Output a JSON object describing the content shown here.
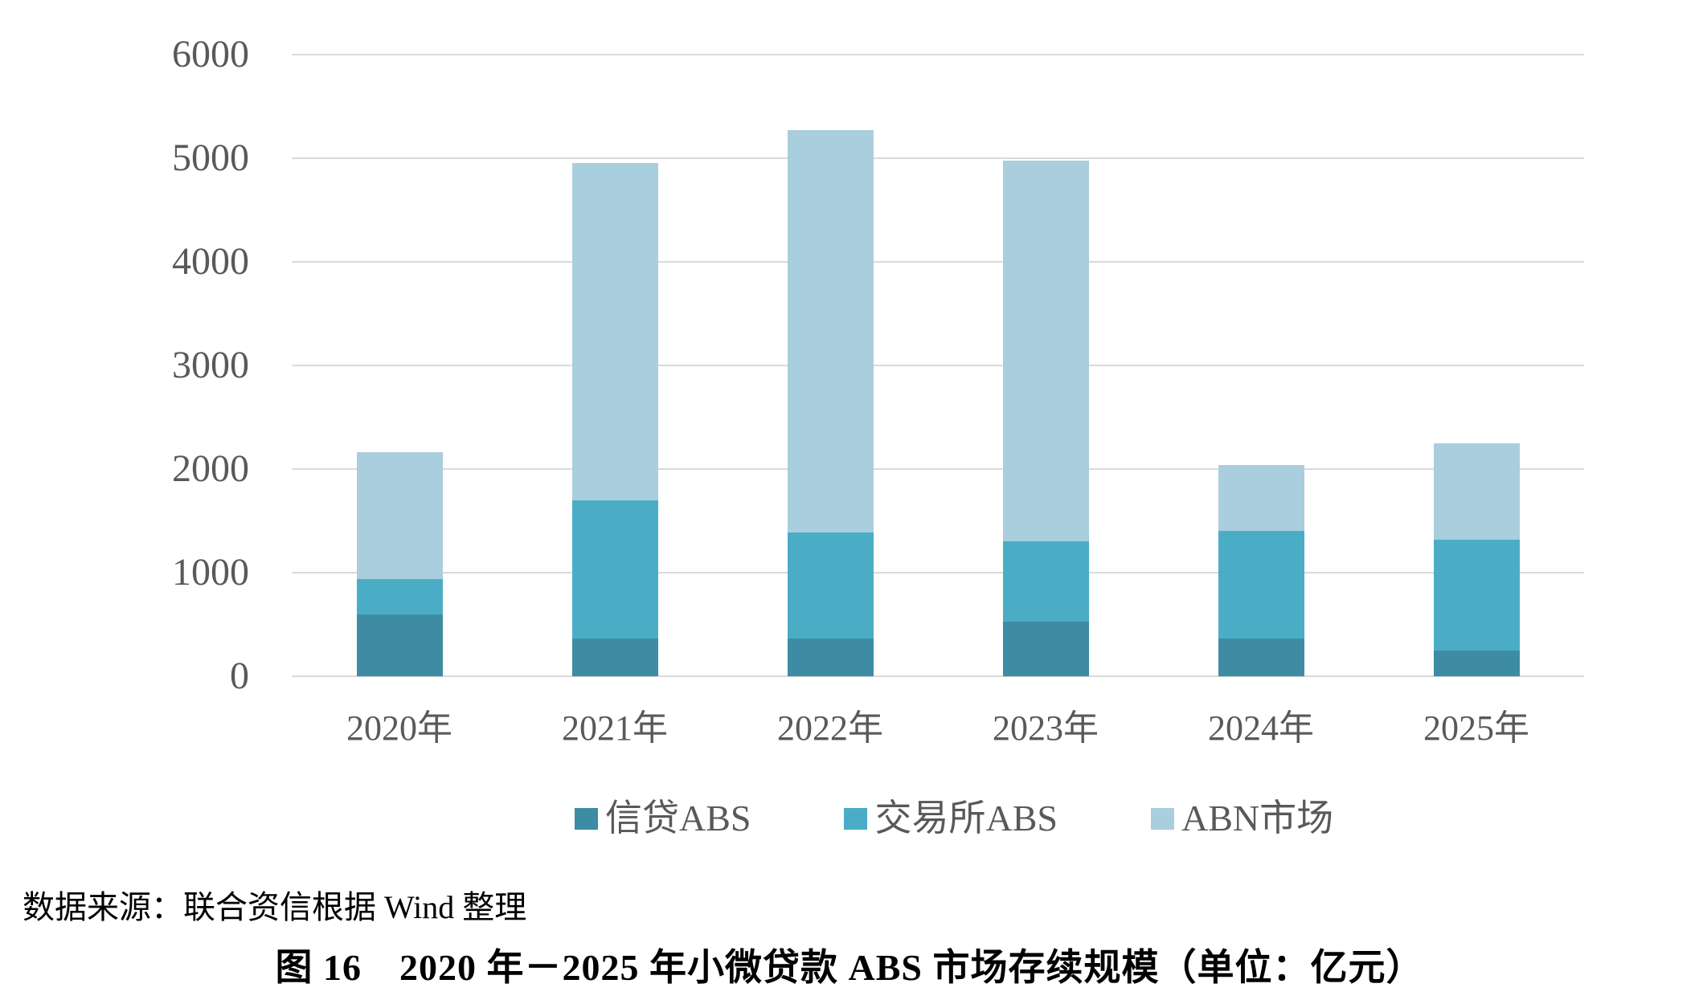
{
  "chart_data": {
    "type": "bar",
    "stacked": true,
    "title": "",
    "xlabel": "",
    "ylabel": "",
    "unit": "亿元",
    "categories": [
      "2020年",
      "2021年",
      "2022年",
      "2023年",
      "2024年",
      "2025年"
    ],
    "series": [
      {
        "name": "信贷ABS",
        "color": "#3e8ca3",
        "values": [
          600,
          365,
          365,
          525,
          365,
          250
        ]
      },
      {
        "name": "交易所ABS",
        "color": "#4aadc5",
        "values": [
          340,
          1335,
          1025,
          775,
          1035,
          1070
        ]
      },
      {
        "name": "ABN市场",
        "color": "#a9cede",
        "values": [
          1220,
          3250,
          3880,
          3680,
          640,
          930
        ]
      }
    ],
    "totals": [
      2160,
      4950,
      5270,
      4980,
      2040,
      2250
    ],
    "ylim": [
      0,
      6000
    ],
    "yticks": [
      0,
      1000,
      2000,
      3000,
      4000,
      5000,
      6000
    ],
    "grid": "horizontal",
    "gridline_color": "#dadada",
    "axis_label_color": "#595959",
    "legend_position": "bottom"
  },
  "source_note": "数据来源：联合资信根据 Wind 整理",
  "caption": "图 16　2020 年－2025 年小微贷款 ABS 市场存续规模（单位：亿元）"
}
